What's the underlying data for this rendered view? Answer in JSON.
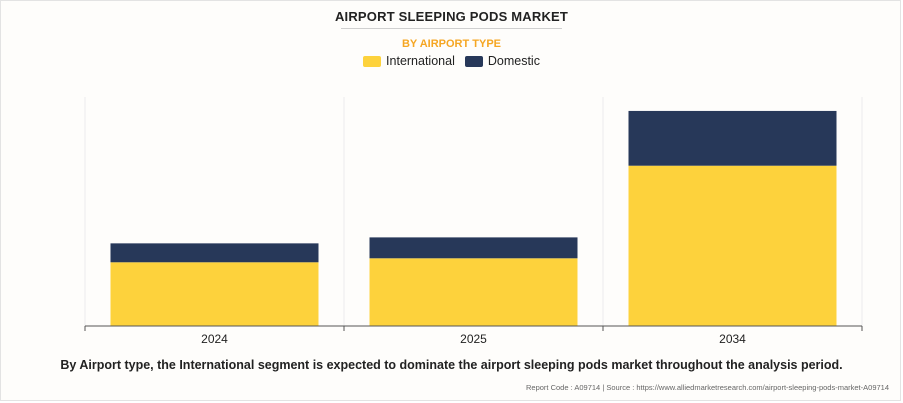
{
  "header": {
    "title": "AIRPORT SLEEPING PODS MARKET",
    "subtitle": "BY AIRPORT TYPE"
  },
  "chart_data": {
    "type": "bar",
    "stacked": true,
    "categories": [
      "2024",
      "2025",
      "2034"
    ],
    "series": [
      {
        "name": "International",
        "color": "#fdd23c",
        "values": [
          64,
          68,
          161
        ]
      },
      {
        "name": "Domestic",
        "color": "#273859",
        "values": [
          19,
          21,
          55
        ]
      }
    ],
    "ylim": [
      0,
      230
    ],
    "grid": true,
    "legend_placement": "top-center"
  },
  "footer": {
    "caption": "By Airport type, the International segment is expected to dominate the airport sleeping pods market throughout the analysis period.",
    "report_code": "Report Code : A09714",
    "separator": "|",
    "source": "Source : https://www.alliedmarketresearch.com/airport-sleeping-pods-market-A09714"
  }
}
